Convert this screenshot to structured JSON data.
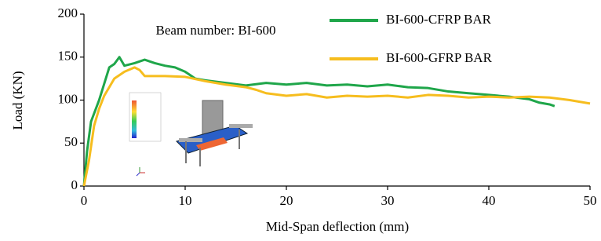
{
  "chart_data": {
    "type": "line",
    "annotation": "Beam number: BI-600",
    "xlabel": "Mid-Span deflection (mm)",
    "ylabel": "Load (KN)",
    "xlim": [
      0,
      50
    ],
    "xticks": [
      0,
      10,
      20,
      30,
      40,
      50
    ],
    "ylim": [
      0,
      200
    ],
    "yticks": [
      0,
      50,
      100,
      150,
      200
    ],
    "legend": "top",
    "series": [
      {
        "name": "BI-600-CFRP BAR",
        "color": "#1fa64a",
        "x": [
          0,
          0.3,
          0.7,
          1.5,
          2.5,
          3,
          3.5,
          4,
          5,
          6,
          7,
          8,
          9,
          10,
          11,
          12,
          14,
          16,
          18,
          20,
          22,
          24,
          26,
          28,
          30,
          32,
          34,
          36,
          38,
          40,
          42,
          44,
          45,
          46,
          46.5
        ],
        "values": [
          0,
          40,
          75,
          100,
          138,
          142,
          150,
          140,
          143,
          147,
          143,
          140,
          138,
          133,
          125,
          123,
          120,
          117,
          120,
          118,
          120,
          117,
          118,
          116,
          118,
          115,
          114,
          110,
          108,
          106,
          104,
          101,
          97,
          95,
          93
        ]
      },
      {
        "name": "BI-600-GFRP BAR",
        "color": "#f6bd1e",
        "x": [
          0,
          0.5,
          1,
          1.5,
          2,
          2.5,
          3,
          4,
          5,
          5.5,
          6,
          8,
          10,
          12,
          14,
          16,
          17,
          18,
          20,
          22,
          24,
          26,
          28,
          30,
          32,
          34,
          36,
          38,
          40,
          42,
          44,
          46,
          48,
          50
        ],
        "values": [
          0,
          30,
          70,
          90,
          105,
          115,
          125,
          133,
          138,
          135,
          128,
          128,
          127,
          122,
          118,
          115,
          112,
          108,
          105,
          107,
          103,
          105,
          104,
          105,
          103,
          106,
          105,
          103,
          104,
          103,
          104,
          103,
          100,
          96
        ]
      }
    ]
  }
}
